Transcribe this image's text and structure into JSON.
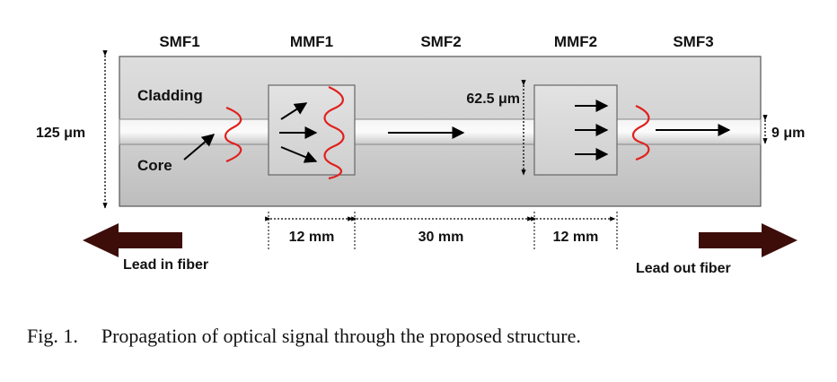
{
  "segments": {
    "smf1": "SMF1",
    "mmf1": "MMF1",
    "smf2": "SMF2",
    "mmf2": "MMF2",
    "smf3": "SMF3"
  },
  "labels": {
    "cladding": "Cladding",
    "core": "Core",
    "cladding_diameter": "125 μm",
    "mmf_core_diameter": "62.5 μm",
    "smf_core_diameter": "9 μm"
  },
  "lengths": {
    "mmf1": "12 mm",
    "smf2": "30 mm",
    "mmf2": "12 mm"
  },
  "leads": {
    "in": "Lead in fiber",
    "out": "Lead out fiber"
  },
  "caption": {
    "number": "Fig. 1.",
    "text": "Propagation of optical signal through the proposed structure."
  },
  "colors": {
    "wave": "#e0201c",
    "lead_arrow": "#3d0d0a"
  }
}
